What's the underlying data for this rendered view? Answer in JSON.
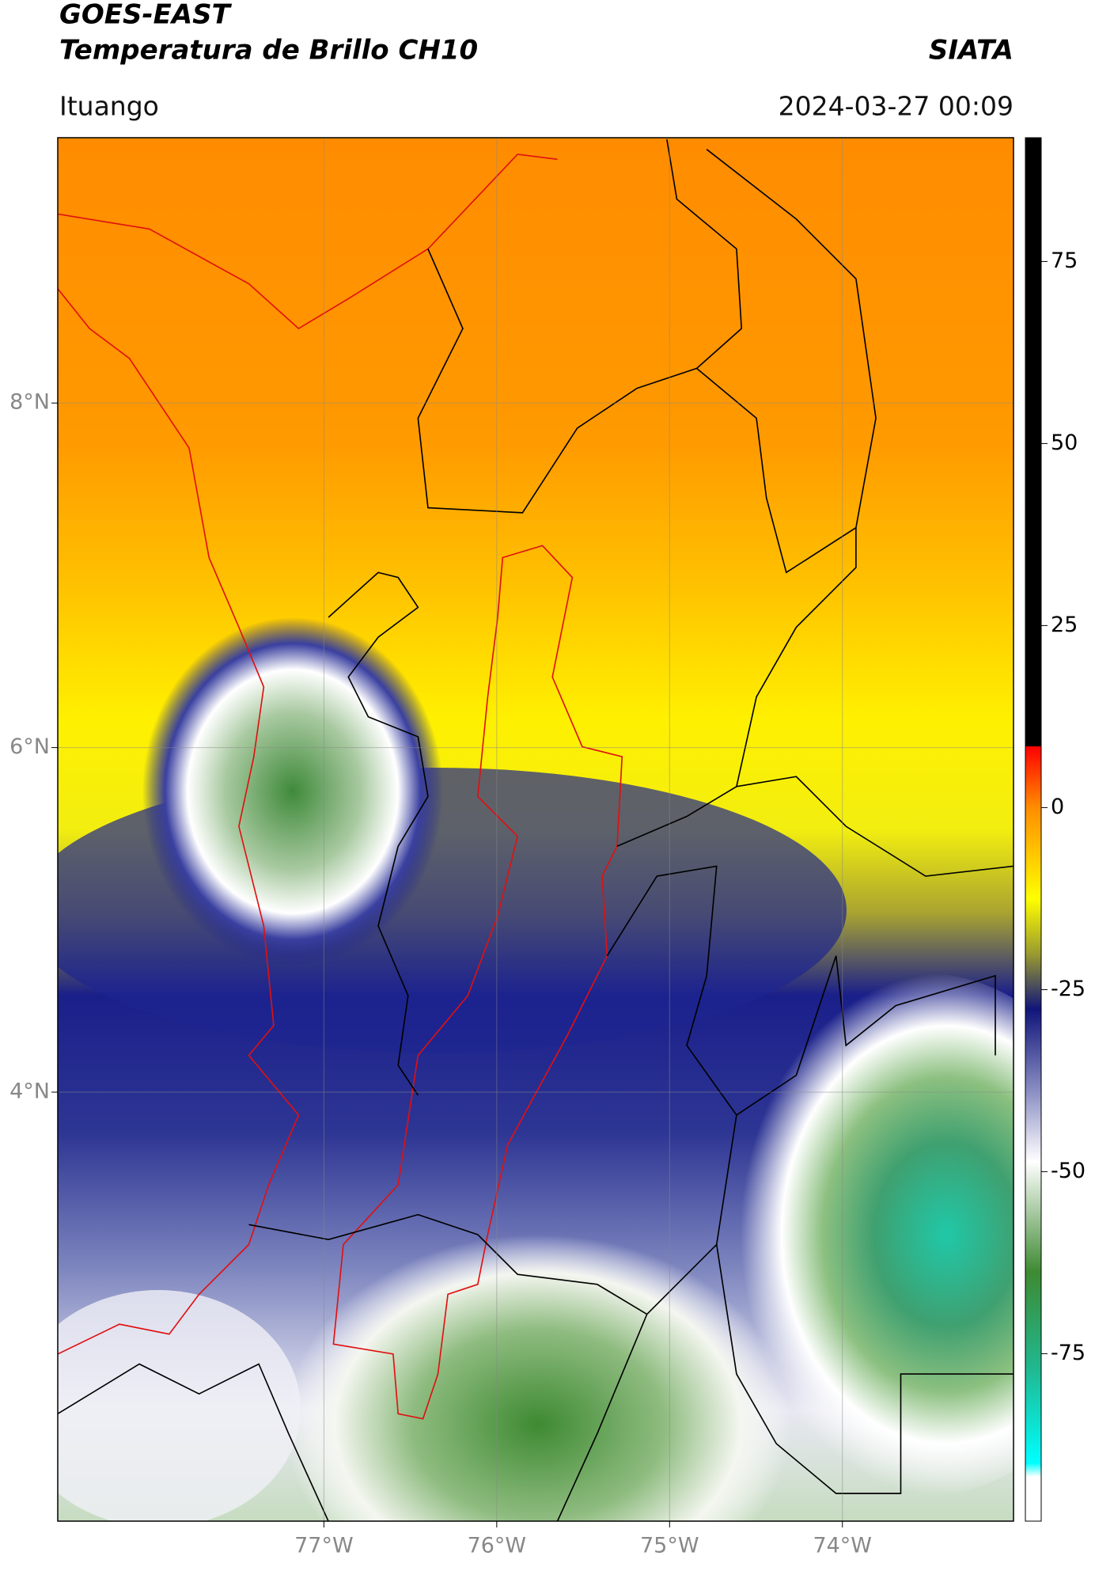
{
  "header": {
    "title": "GOES-EAST",
    "subtitle": "Temperatura de Brillo CH10",
    "source": "SIATA",
    "location": "Ituango",
    "datetime": "2024-03-27 00:09"
  },
  "map": {
    "xlim": [
      -78.54,
      -73.01
    ],
    "ylim": [
      1.51,
      9.54
    ],
    "xticks": [
      {
        "value": -77,
        "label": "77°W"
      },
      {
        "value": -76,
        "label": "76°W"
      },
      {
        "value": -75,
        "label": "75°W"
      },
      {
        "value": -74,
        "label": "74°W"
      }
    ],
    "yticks": [
      {
        "value": 4,
        "label": "4°N"
      },
      {
        "value": 6,
        "label": "6°N"
      },
      {
        "value": 8,
        "label": "8°N"
      }
    ],
    "grid": true
  },
  "colorbar": {
    "clim": [
      -98,
      92
    ],
    "ticks": [
      75,
      50,
      25,
      0,
      -25,
      -50,
      -75
    ]
  }
}
